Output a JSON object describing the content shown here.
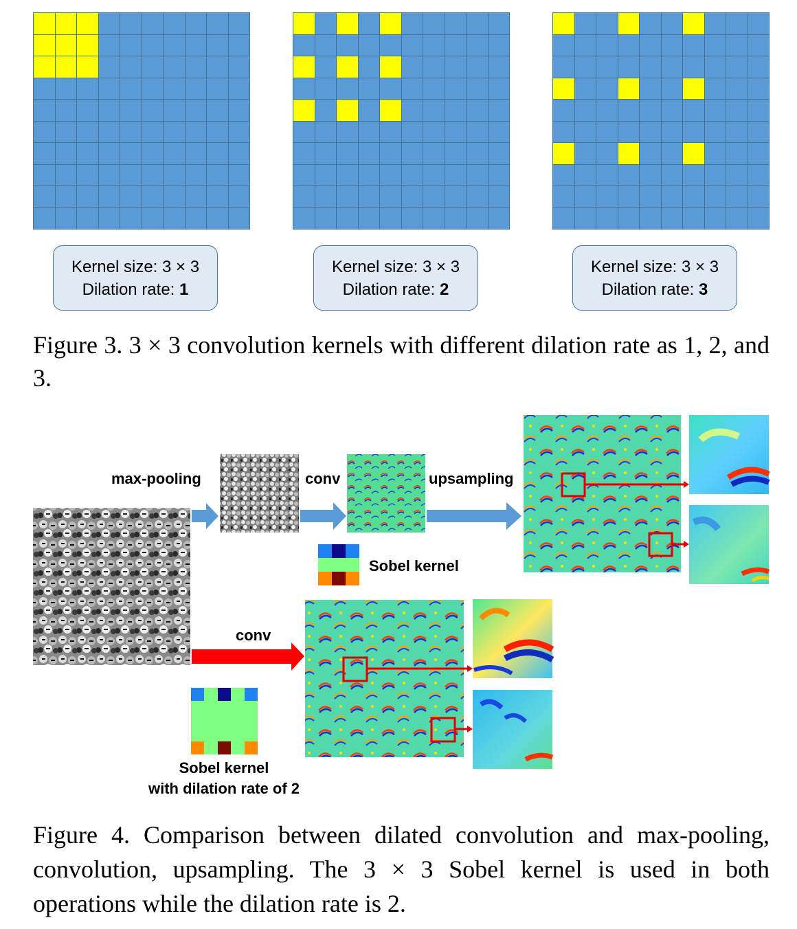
{
  "figure3": {
    "panels": [
      {
        "kernel_label": "Kernel size: 3 × 3",
        "dilation_label": "Dilation rate: ",
        "dilation_value": "1",
        "dilation": 1
      },
      {
        "kernel_label": "Kernel size: 3 × 3",
        "dilation_label": "Dilation rate: ",
        "dilation_value": "2",
        "dilation": 2
      },
      {
        "kernel_label": "Kernel size: 3 × 3",
        "dilation_label": "Dilation rate: ",
        "dilation_value": "3",
        "dilation": 3
      }
    ],
    "grid_size": 10,
    "colors": {
      "cell": "#5b9bd5",
      "active": "#ffff00",
      "border": "#41719c"
    },
    "caption": "Figure 3. 3 × 3 convolution kernels with different dilation rate as 1, 2, and 3."
  },
  "figure4": {
    "labels": {
      "max_pooling": "max-pooling",
      "conv_top": "conv",
      "upsampling": "upsampling",
      "sobel": "Sobel kernel",
      "conv_bottom": "conv",
      "sobel_dilated_line1": "Sobel kernel",
      "sobel_dilated_line2": "with dilation rate of 2"
    },
    "colors": {
      "top_arrow": "#5b9bd5",
      "bottom_arrow": "#ff0000",
      "highlight": "#e00000"
    },
    "caption": "Figure 4. Comparison between dilated convolution and max-pooling, convolution, upsampling. The 3 × 3 Sobel kernel is used in both operations while the dilation rate is 2."
  }
}
